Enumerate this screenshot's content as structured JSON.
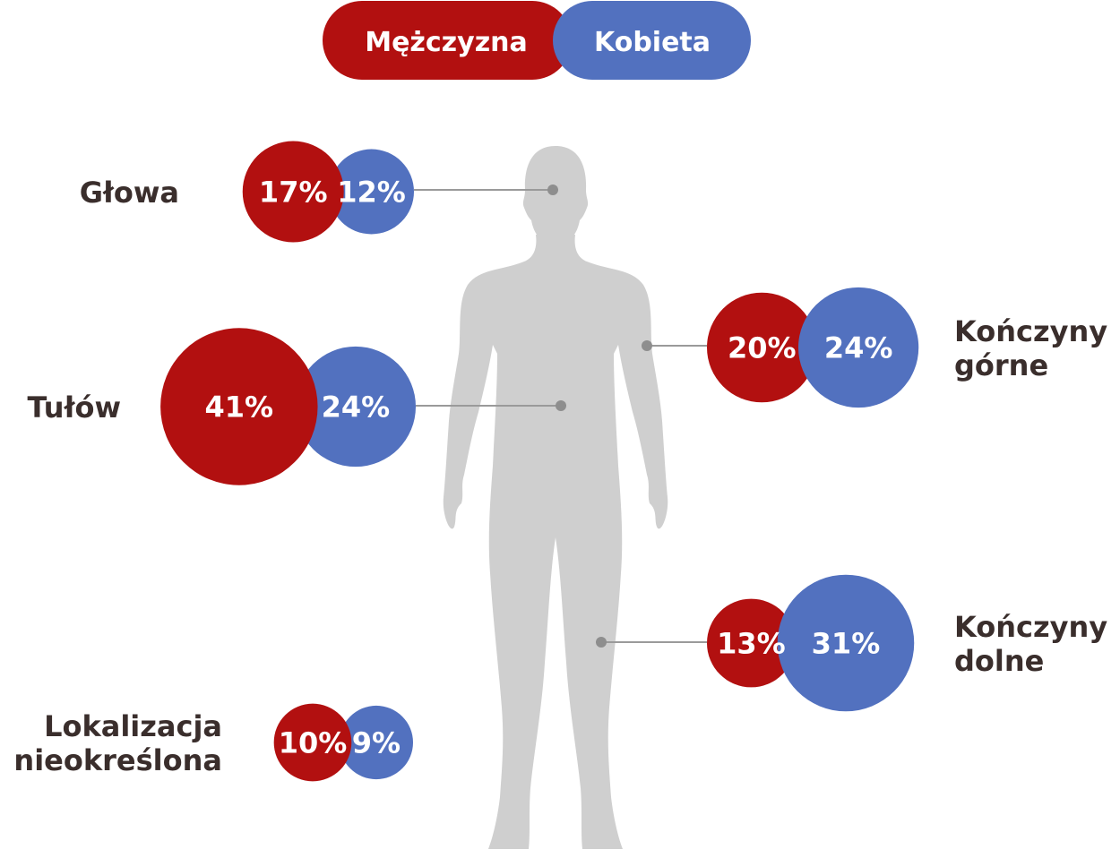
{
  "chart_data": {
    "type": "bubble",
    "title": "",
    "legend": {
      "placement": "top-center",
      "items": [
        {
          "name": "Mężczyzna",
          "color": "#b21010"
        },
        {
          "name": "Kobieta",
          "color": "#5271bf"
        }
      ]
    },
    "series": [
      {
        "name": "Mężczyzna",
        "color": "#b21010"
      },
      {
        "name": "Kobieta",
        "color": "#5271bf"
      }
    ],
    "categories": [
      {
        "label": "Głowa",
        "label_lines": [
          "Głowa"
        ],
        "values": [
          17,
          12
        ],
        "value_labels": [
          "17%",
          "12%"
        ]
      },
      {
        "label": "Tułów",
        "label_lines": [
          "Tułów"
        ],
        "values": [
          41,
          24
        ],
        "value_labels": [
          "41%",
          "24%"
        ]
      },
      {
        "label": "Lokalizacja nieokreślona",
        "label_lines": [
          "Lokalizacja",
          "nieokreślona"
        ],
        "values": [
          10,
          9
        ],
        "value_labels": [
          "10%",
          "9%"
        ]
      },
      {
        "label": "Kończyny górne",
        "label_lines": [
          "Kończyny",
          "górne"
        ],
        "values": [
          20,
          24
        ],
        "value_labels": [
          "20%",
          "24%"
        ]
      },
      {
        "label": "Kończyny dolne",
        "label_lines": [
          "Kończyny",
          "dolne"
        ],
        "values": [
          13,
          31
        ],
        "value_labels": [
          "13%",
          "31%"
        ]
      }
    ],
    "unit": "%"
  },
  "colors": {
    "male": "#b21010",
    "female": "#5271bf",
    "body_silhouette": "#cfcfcf",
    "leader_line": "#9a9a9a",
    "label_text": "#3a2e2c"
  },
  "icons": {
    "figure": "human-body-silhouette-icon"
  }
}
